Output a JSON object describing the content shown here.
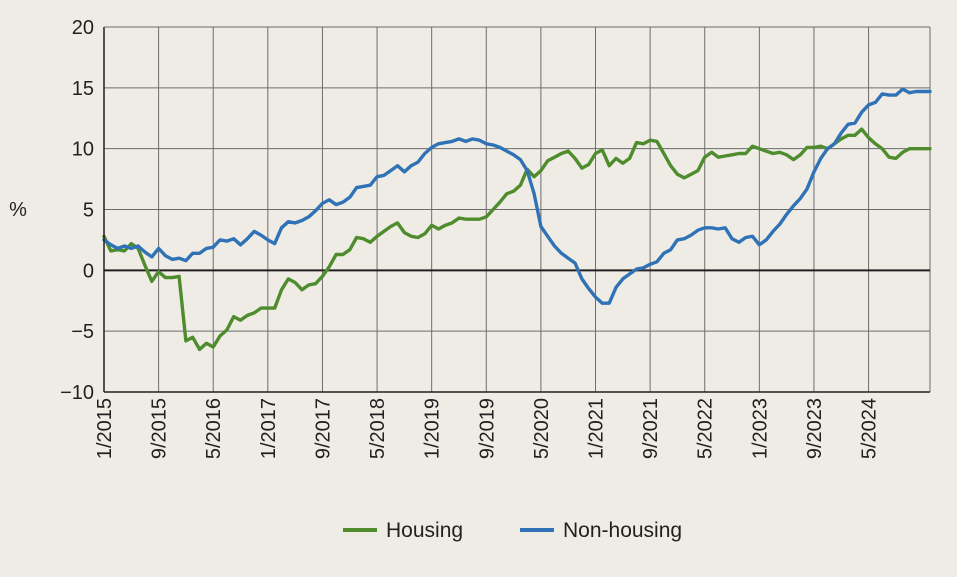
{
  "chart_data": {
    "type": "line",
    "title": "",
    "xlabel": "",
    "ylabel": "%",
    "ylim": [
      -10,
      20
    ],
    "yticks": [
      -10,
      -5,
      0,
      5,
      10,
      15,
      20
    ],
    "ytick_labels": [
      "−10",
      "−5",
      "0",
      "5",
      "10",
      "15",
      "20"
    ],
    "x_range_months": [
      0,
      121
    ],
    "xticks": [
      0,
      8,
      16,
      24,
      32,
      40,
      48,
      56,
      64,
      72,
      80,
      88,
      96,
      104,
      112
    ],
    "xtick_labels": [
      "1/2015",
      "9/2015",
      "5/2016",
      "1/2017",
      "9/2017",
      "5/2018",
      "1/2019",
      "9/2019",
      "5/2020",
      "1/2021",
      "9/2021",
      "5/2022",
      "1/2023",
      "9/2023",
      "5/2024"
    ],
    "grid": true,
    "zero_line": true,
    "legend_position": "bottom-center",
    "series": [
      {
        "name": "Housing",
        "color": "#4e8c2e",
        "x": [
          0,
          1,
          2,
          3,
          4,
          5,
          6,
          7,
          8,
          9,
          10,
          11,
          12,
          13,
          14,
          15,
          16,
          17,
          18,
          19,
          20,
          21,
          22,
          23,
          24,
          25,
          26,
          27,
          28,
          29,
          30,
          31,
          32,
          33,
          34,
          35,
          36,
          37,
          38,
          39,
          40,
          41,
          42,
          43,
          44,
          45,
          46,
          47,
          48,
          49,
          50,
          51,
          52,
          53,
          54,
          55,
          56,
          57,
          58,
          59,
          60,
          61,
          62,
          63,
          64,
          65,
          66,
          67,
          68,
          69,
          70,
          71,
          72,
          73,
          74,
          75,
          76,
          77,
          78,
          79,
          80,
          81,
          82,
          83,
          84,
          85,
          86,
          87,
          88,
          89,
          90,
          91,
          92,
          93,
          94,
          95,
          96,
          97,
          98,
          99,
          100,
          101,
          102,
          103,
          104,
          105,
          106,
          107,
          108,
          109,
          110,
          111,
          112,
          113,
          114,
          115,
          116,
          117,
          118,
          119,
          120,
          121
        ],
        "values": [
          2.8,
          1.6,
          1.7,
          1.6,
          2.2,
          1.8,
          0.4,
          -0.9,
          -0.1,
          -0.6,
          -0.6,
          -0.5,
          -5.8,
          -5.5,
          -6.5,
          -6.0,
          -6.3,
          -5.4,
          -4.9,
          -3.8,
          -4.1,
          -3.7,
          -3.5,
          -3.1,
          -3.1,
          -3.1,
          -1.6,
          -0.7,
          -1.0,
          -1.6,
          -1.2,
          -1.1,
          -0.5,
          0.3,
          1.3,
          1.3,
          1.7,
          2.7,
          2.6,
          2.3,
          2.8,
          3.2,
          3.6,
          3.9,
          3.1,
          2.8,
          2.7,
          3.0,
          3.7,
          3.4,
          3.7,
          3.9,
          4.3,
          4.2,
          4.2,
          4.2,
          4.4,
          5.0,
          5.6,
          6.3,
          6.5,
          7.0,
          8.3,
          7.7,
          8.2,
          9.0,
          9.3,
          9.6,
          9.8,
          9.2,
          8.4,
          8.7,
          9.6,
          9.9,
          8.6,
          9.2,
          8.8,
          9.2,
          10.5,
          10.4,
          10.7,
          10.6,
          9.6,
          8.6,
          7.9,
          7.6,
          7.9,
          8.2,
          9.3,
          9.7,
          9.3,
          9.4,
          9.5,
          9.6,
          9.6,
          10.2,
          10.0,
          9.8,
          9.6,
          9.7,
          9.5,
          9.1,
          9.5,
          10.1,
          10.1,
          10.2,
          10.0,
          10.4,
          10.8,
          11.1,
          11.1,
          11.6,
          10.9,
          10.4,
          10.0,
          9.3,
          9.2,
          9.7,
          10.0,
          10.0,
          10.0,
          10.0
        ]
      },
      {
        "name": "Non-housing",
        "color": "#2f72b5",
        "x": [
          0,
          1,
          2,
          3,
          4,
          5,
          6,
          7,
          8,
          9,
          10,
          11,
          12,
          13,
          14,
          15,
          16,
          17,
          18,
          19,
          20,
          21,
          22,
          23,
          24,
          25,
          26,
          27,
          28,
          29,
          30,
          31,
          32,
          33,
          34,
          35,
          36,
          37,
          38,
          39,
          40,
          41,
          42,
          43,
          44,
          45,
          46,
          47,
          48,
          49,
          50,
          51,
          52,
          53,
          54,
          55,
          56,
          57,
          58,
          59,
          60,
          61,
          62,
          63,
          64,
          65,
          66,
          67,
          68,
          69,
          70,
          71,
          72,
          73,
          74,
          75,
          76,
          77,
          78,
          79,
          80,
          81,
          82,
          83,
          84,
          85,
          86,
          87,
          88,
          89,
          90,
          91,
          92,
          93,
          94,
          95,
          96,
          97,
          98,
          99,
          100,
          101,
          102,
          103,
          104,
          105,
          106,
          107,
          108,
          109,
          110,
          111,
          112,
          113,
          114,
          115,
          116,
          117,
          118,
          119,
          120,
          121
        ],
        "values": [
          2.5,
          2.1,
          1.8,
          2.0,
          1.8,
          2.0,
          1.5,
          1.1,
          1.8,
          1.2,
          0.9,
          1.0,
          0.8,
          1.4,
          1.4,
          1.8,
          1.9,
          2.5,
          2.4,
          2.6,
          2.1,
          2.6,
          3.2,
          2.9,
          2.5,
          2.2,
          3.5,
          4.0,
          3.9,
          4.1,
          4.4,
          4.9,
          5.5,
          5.8,
          5.4,
          5.6,
          6.0,
          6.8,
          6.9,
          7.0,
          7.7,
          7.8,
          8.2,
          8.6,
          8.1,
          8.6,
          8.9,
          9.6,
          10.1,
          10.4,
          10.5,
          10.6,
          10.8,
          10.6,
          10.8,
          10.7,
          10.4,
          10.3,
          10.1,
          9.8,
          9.5,
          9.1,
          8.2,
          6.3,
          3.6,
          2.8,
          2.0,
          1.4,
          1.0,
          0.6,
          -0.7,
          -1.5,
          -2.2,
          -2.7,
          -2.7,
          -1.4,
          -0.7,
          -0.3,
          0.1,
          0.2,
          0.5,
          0.7,
          1.4,
          1.7,
          2.5,
          2.6,
          2.9,
          3.3,
          3.5,
          3.5,
          3.4,
          3.5,
          2.6,
          2.3,
          2.7,
          2.8,
          2.1,
          2.5,
          3.2,
          3.8,
          4.6,
          5.3,
          5.9,
          6.7,
          8.1,
          9.2,
          10.0,
          10.4,
          11.3,
          12.0,
          12.1,
          13.0,
          13.6,
          13.8,
          14.5,
          14.4,
          14.4,
          14.9,
          14.6,
          14.7,
          14.7,
          14.7
        ]
      }
    ]
  }
}
